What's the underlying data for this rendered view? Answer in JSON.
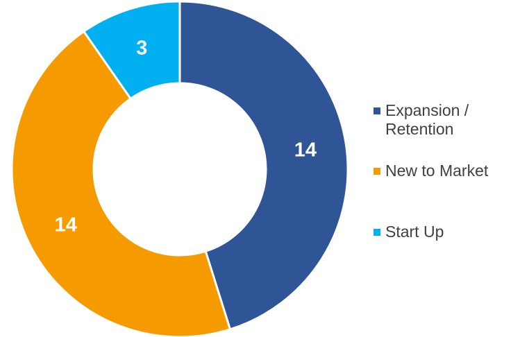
{
  "chart_data": {
    "type": "pie",
    "variant": "donut",
    "title": "",
    "categories": [
      "Expansion / Retention",
      "New to Market",
      "Start Up"
    ],
    "values": [
      14,
      14,
      3
    ],
    "data_labels": [
      "14",
      "14",
      "3"
    ],
    "colors": [
      "#2F5597",
      "#F59B00",
      "#00B0F0"
    ],
    "legend": {
      "position": "right",
      "entries": [
        {
          "label": "Expansion /\nRetention",
          "color": "#2F5597"
        },
        {
          "label": "New to Market",
          "color": "#F59B00"
        },
        {
          "label": "Start Up",
          "color": "#00B0F0"
        }
      ]
    }
  }
}
